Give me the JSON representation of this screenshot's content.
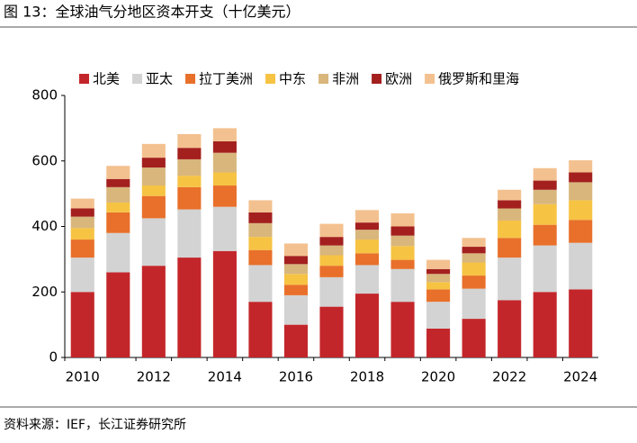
{
  "chart_data": {
    "type": "stacked_bar",
    "title": "图 13：全球油气分地区资本开支（十亿美元）",
    "source": "资料来源：IEF，长江证券研究所",
    "categories": [
      "2010",
      null,
      "2012",
      null,
      "2014",
      null,
      "2016",
      null,
      "2018",
      null,
      "2020",
      null,
      "2022",
      null,
      "2024"
    ],
    "ylim": [
      0,
      800
    ],
    "yticks": [
      0,
      200,
      400,
      600,
      800
    ],
    "grid": false,
    "legend": "top",
    "series": [
      {
        "name": "北美",
        "color": "#c3262a",
        "values": [
          200,
          260,
          280,
          305,
          325,
          170,
          100,
          155,
          195,
          170,
          88,
          118,
          175,
          200,
          208
        ]
      },
      {
        "name": "亚太",
        "color": "#d3d3d3",
        "values": [
          105,
          120,
          145,
          147,
          135,
          112,
          90,
          90,
          87,
          100,
          82,
          92,
          130,
          142,
          142
        ]
      },
      {
        "name": "拉丁美洲",
        "color": "#e8702a",
        "values": [
          55,
          63,
          68,
          68,
          65,
          46,
          32,
          35,
          36,
          28,
          38,
          40,
          60,
          63,
          70
        ]
      },
      {
        "name": "中东",
        "color": "#f6c343",
        "values": [
          35,
          30,
          32,
          35,
          40,
          40,
          33,
          32,
          42,
          42,
          22,
          40,
          53,
          63,
          60
        ]
      },
      {
        "name": "非洲",
        "color": "#d8b67c",
        "values": [
          35,
          47,
          55,
          50,
          60,
          42,
          30,
          30,
          30,
          32,
          25,
          28,
          37,
          44,
          55
        ]
      },
      {
        "name": "欧洲",
        "color": "#a3201f",
        "values": [
          25,
          25,
          30,
          35,
          35,
          33,
          25,
          26,
          22,
          28,
          15,
          20,
          25,
          28,
          30
        ]
      },
      {
        "name": "俄罗斯和里海",
        "color": "#f3c18f",
        "values": [
          30,
          40,
          42,
          42,
          40,
          37,
          38,
          40,
          38,
          40,
          28,
          27,
          32,
          38,
          37
        ]
      }
    ]
  }
}
